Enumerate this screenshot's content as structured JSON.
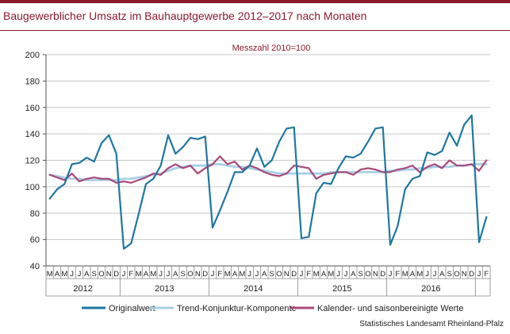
{
  "title": "Baugewerblicher Umsatz im Bauhauptgewerbe 2012–2017 nach Monaten",
  "source": "Statistisches Landesamt Rheinland-Pfalz",
  "colors": {
    "brand": "#8b1a2e",
    "original": "#1f77a0",
    "trend": "#a7cfe6",
    "adjusted": "#a8497a"
  },
  "chart_data": {
    "type": "line",
    "subtitle": "Messzahl 2010=100",
    "ylim": [
      40,
      200
    ],
    "yticks": [
      40,
      60,
      80,
      100,
      120,
      140,
      160,
      180,
      200
    ],
    "grid": true,
    "legend_position": "bottom",
    "month_labels": [
      "M",
      "A",
      "M",
      "J",
      "J",
      "A",
      "S",
      "O",
      "N",
      "D",
      "J",
      "F",
      "M",
      "A",
      "M",
      "J",
      "J",
      "A",
      "S",
      "O",
      "N",
      "D",
      "J",
      "F",
      "M",
      "A",
      "M",
      "J",
      "J",
      "A",
      "S",
      "O",
      "N",
      "D",
      "J",
      "F",
      "M",
      "A",
      "M",
      "J",
      "J",
      "A",
      "S",
      "O",
      "N",
      "D",
      "J",
      "F",
      "M",
      "A",
      "M",
      "J",
      "J",
      "A",
      "S",
      "O",
      "N",
      "D",
      "J",
      "F"
    ],
    "years": [
      {
        "label": "2012",
        "start": 0,
        "end": 10
      },
      {
        "label": "2013",
        "start": 10,
        "end": 22
      },
      {
        "label": "2014",
        "start": 22,
        "end": 34
      },
      {
        "label": "2015",
        "start": 34,
        "end": 46
      },
      {
        "label": "2016",
        "start": 46,
        "end": 58
      }
    ],
    "series": [
      {
        "name": "Originalwert",
        "values": [
          91,
          98,
          102,
          117,
          118,
          122,
          119,
          133,
          139,
          125,
          53,
          57,
          79,
          102,
          106,
          116,
          139,
          125,
          130,
          137,
          136,
          138,
          69,
          82,
          96,
          111,
          111,
          116,
          129,
          115,
          120,
          134,
          144,
          145,
          61,
          62,
          95,
          103,
          102,
          114,
          123,
          122,
          125,
          134,
          144,
          145,
          56,
          70,
          98,
          106,
          108,
          126,
          124,
          127,
          141,
          131,
          147,
          154,
          58,
          77
        ]
      },
      {
        "name": "Trend-Konjunktur-Komponente",
        "values": [
          109,
          108,
          107,
          106,
          106,
          105,
          105,
          105,
          105,
          105,
          106,
          106,
          107,
          108,
          109,
          110,
          112,
          114,
          115,
          116,
          116,
          116,
          117,
          117,
          116,
          115,
          115,
          114,
          113,
          112,
          111,
          110,
          110,
          110,
          110,
          110,
          110,
          110,
          111,
          111,
          111,
          111,
          111,
          111,
          111,
          111,
          112,
          112,
          113,
          113,
          114,
          114,
          115,
          115,
          115,
          116,
          116,
          117,
          117,
          117
        ]
      },
      {
        "name": "Kalender- und saisonbereinigte Werte",
        "values": [
          109,
          107,
          105,
          110,
          104,
          106,
          107,
          106,
          106,
          103,
          104,
          103,
          105,
          107,
          110,
          109,
          114,
          117,
          114,
          116,
          110,
          114,
          117,
          123,
          117,
          119,
          113,
          116,
          114,
          111,
          109,
          108,
          110,
          116,
          115,
          114,
          106,
          109,
          110,
          111,
          111,
          109,
          113,
          114,
          113,
          111,
          111,
          113,
          114,
          116,
          111,
          115,
          117,
          114,
          120,
          116,
          116,
          117,
          112,
          120
        ]
      }
    ]
  }
}
